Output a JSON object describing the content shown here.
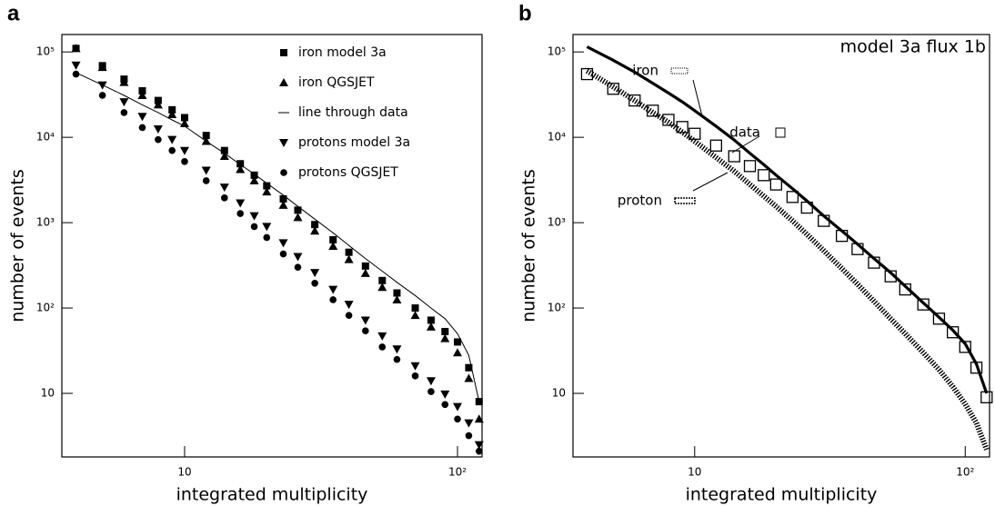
{
  "chart_data": [
    {
      "type": "scatter",
      "title": "a",
      "xlabel": "integrated multiplicity",
      "ylabel": "number of events",
      "xscale": "log",
      "yscale": "log",
      "xlim": [
        3.55,
        123
      ],
      "ylim": [
        1.8,
        160000
      ],
      "xticks": [
        10,
        {
          "value": 100,
          "label": "10²"
        }
      ],
      "yticks": [
        10,
        {
          "value": 100,
          "label": "10²"
        },
        {
          "value": 1000,
          "label": "10³"
        },
        {
          "value": 10000,
          "label": "10⁴"
        },
        {
          "value": 100000,
          "label": "10⁵"
        }
      ],
      "legend": "upper right",
      "x": [
        4,
        5,
        6,
        7,
        8,
        9,
        10,
        12,
        14,
        16,
        18,
        20,
        23,
        26,
        30,
        35,
        40,
        46,
        53,
        60,
        70,
        80,
        90,
        100,
        110,
        120
      ],
      "series": [
        {
          "name": "iron model 3a",
          "marker": "square",
          "color": "#000000",
          "values": [
            110000,
            69000,
            48000,
            35000,
            27000,
            21000,
            17000,
            10500,
            7000,
            4900,
            3600,
            2700,
            1900,
            1400,
            950,
            630,
            450,
            310,
            210,
            150,
            100,
            72,
            53,
            40,
            20,
            8
          ]
        },
        {
          "name": "iron QGSJET",
          "marker": "triangle-up",
          "color": "#000000",
          "values": [
            110000,
            66000,
            44000,
            31000,
            24000,
            18500,
            14500,
            9000,
            6000,
            4200,
            3100,
            2300,
            1600,
            1150,
            800,
            530,
            370,
            255,
            175,
            125,
            82,
            60,
            44,
            30,
            15,
            5
          ]
        },
        {
          "name": "line through data",
          "marker": "line",
          "color": "#000000",
          "values": [
            57000,
            41000,
            31000,
            24000,
            19500,
            16000,
            13500,
            9000,
            6500,
            4800,
            3700,
            2900,
            2100,
            1550,
            1100,
            760,
            540,
            380,
            270,
            200,
            140,
            100,
            75,
            50,
            28,
            8
          ]
        },
        {
          "name": "protons model 3a",
          "marker": "triangle-down",
          "color": "#000000",
          "values": [
            70000,
            41000,
            26000,
            17500,
            12500,
            9400,
            7000,
            4100,
            2600,
            1700,
            1200,
            900,
            580,
            400,
            260,
            165,
            110,
            72,
            47,
            33,
            21,
            14,
            9.8,
            7,
            4.5,
            2.5
          ]
        },
        {
          "name": "protons QGSJET",
          "marker": "circle",
          "color": "#000000",
          "values": [
            55000,
            31000,
            19500,
            13000,
            9400,
            7000,
            5200,
            3100,
            1950,
            1280,
            900,
            670,
            430,
            300,
            195,
            125,
            82,
            54,
            35,
            25,
            16,
            10.5,
            7.4,
            5,
            3.2,
            2.1
          ]
        }
      ]
    },
    {
      "type": "line",
      "title": "b",
      "xlabel": "integrated multiplicity",
      "ylabel": "number of events",
      "annotation": "model 3a flux 1b",
      "xscale": "log",
      "yscale": "log",
      "xlim": [
        3.55,
        123
      ],
      "ylim": [
        1.8,
        160000
      ],
      "xticks": [
        10,
        {
          "value": 100,
          "label": "10²"
        }
      ],
      "yticks": [
        10,
        {
          "value": 100,
          "label": "10²"
        },
        {
          "value": 1000,
          "label": "10³"
        },
        {
          "value": 10000,
          "label": "10⁴"
        },
        {
          "value": 100000,
          "label": "10⁵"
        }
      ],
      "legend": "near curves",
      "x": [
        4,
        5,
        6,
        7,
        8,
        9,
        10,
        12,
        14,
        16,
        18,
        20,
        23,
        26,
        30,
        35,
        40,
        46,
        53,
        60,
        70,
        80,
        90,
        100,
        110,
        120
      ],
      "series": [
        {
          "name": "iron",
          "marker": "line-thick",
          "color": "#000000",
          "values": [
            115000,
            80000,
            58000,
            43000,
            33000,
            26000,
            20500,
            13500,
            9300,
            6500,
            4800,
            3600,
            2500,
            1800,
            1200,
            800,
            560,
            380,
            260,
            180,
            115,
            78,
            55,
            38,
            22,
            10
          ]
        },
        {
          "name": "data",
          "marker": "square-open",
          "color": "#000000",
          "values": [
            55000,
            37000,
            27000,
            20500,
            16000,
            13200,
            11000,
            8000,
            6000,
            4600,
            3600,
            2800,
            2000,
            1500,
            1050,
            700,
            490,
            340,
            235,
            165,
            110,
            75,
            52,
            35,
            20,
            9
          ]
        },
        {
          "name": "proton",
          "marker": "line-hatched",
          "color": "#000000",
          "values": [
            60000,
            39000,
            27000,
            19500,
            15000,
            11500,
            9000,
            5800,
            4000,
            2800,
            2050,
            1550,
            1050,
            730,
            470,
            290,
            190,
            120,
            75,
            50,
            30,
            19,
            12,
            7.5,
            4.5,
            2.2
          ]
        }
      ]
    }
  ]
}
